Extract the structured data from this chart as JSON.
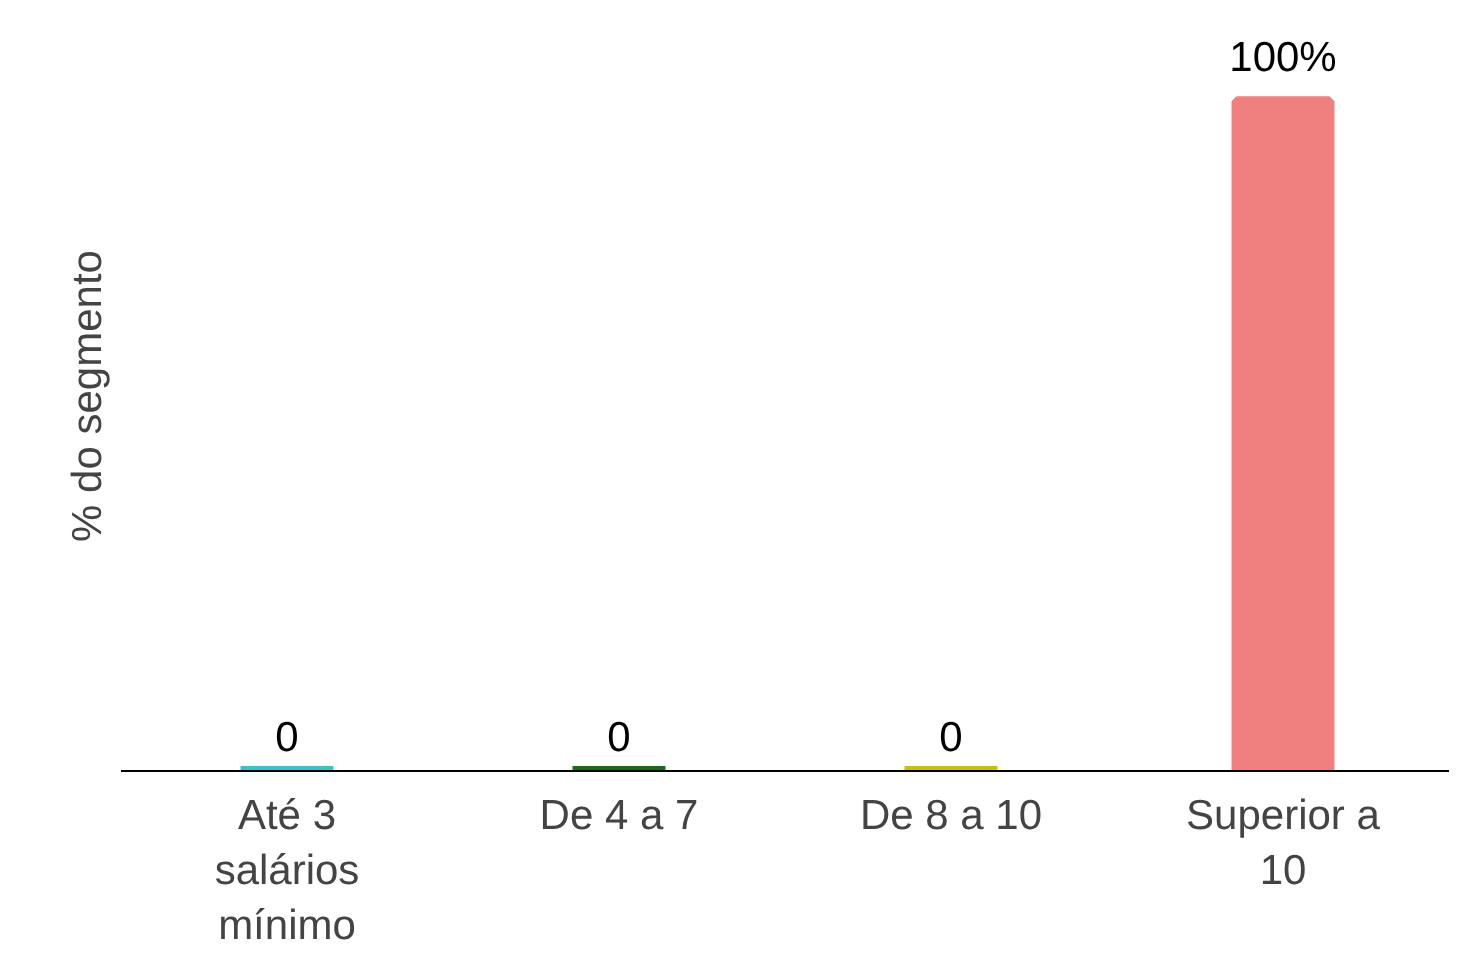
{
  "chart_data": {
    "type": "bar",
    "ylabel": "% do segmento",
    "categories": [
      "Até 3 salários mínimo",
      "De 4 a 7",
      "De 8 a 10",
      "Superior a 10"
    ],
    "values": [
      0,
      0,
      0,
      100
    ],
    "colors": [
      "#33c4cc",
      "#1a6a1a",
      "#c8c000",
      "#f08080"
    ],
    "value_labels": [
      "0",
      "0",
      "0",
      "100%"
    ],
    "grid": false
  }
}
